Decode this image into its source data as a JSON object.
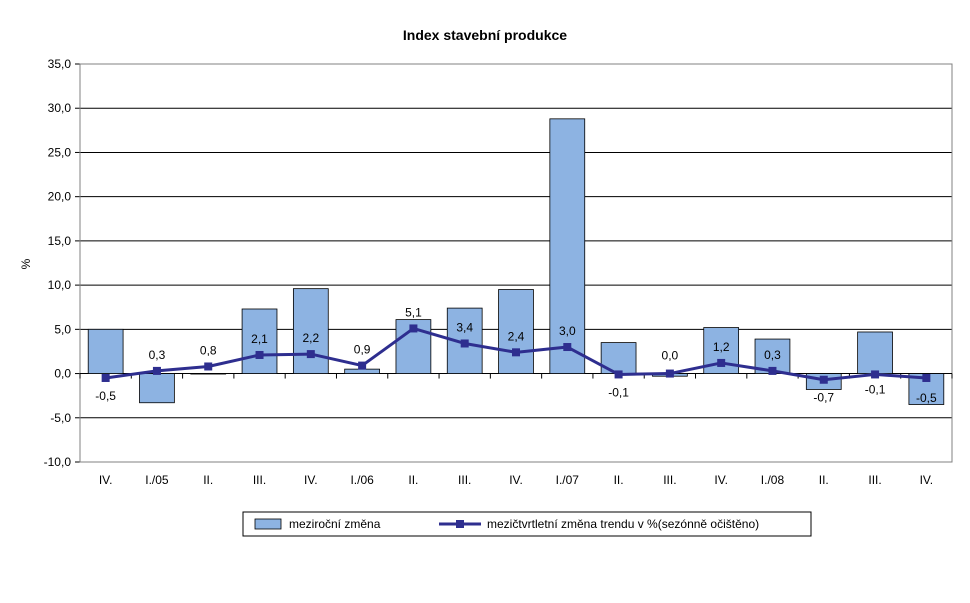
{
  "chart_data": {
    "type": "bar",
    "title": "Index stavební produkce",
    "xlabel": "",
    "ylabel": "%",
    "ylim": [
      -10,
      35
    ],
    "yticks": [
      "-10,0",
      "-5,0",
      "0,0",
      "5,0",
      "10,0",
      "15,0",
      "20,0",
      "25,0",
      "30,0",
      "35,0"
    ],
    "ytick_values": [
      -10,
      -5,
      0,
      5,
      10,
      15,
      20,
      25,
      30,
      35
    ],
    "grid": true,
    "legend_position": "bottom",
    "categories": [
      "IV.",
      "I./05",
      "II.",
      "III.",
      "IV.",
      "I./06",
      "II.",
      "III.",
      "IV.",
      "I./07",
      "II.",
      "III.",
      "IV.",
      "I./08",
      "II.",
      "III.",
      "IV."
    ],
    "series": [
      {
        "name": "meziroční změna",
        "kind": "bar",
        "color": "#8DB3E2",
        "values": [
          5.0,
          -3.3,
          0.0,
          7.3,
          9.6,
          0.5,
          6.1,
          7.4,
          9.5,
          28.8,
          3.5,
          -0.3,
          5.2,
          3.9,
          -1.8,
          4.7,
          -3.5
        ]
      },
      {
        "name": "mezičtvrtletní změna trendu v %(sezónně očištěno)",
        "kind": "line",
        "color": "#2E2E8F",
        "values": [
          -0.5,
          0.3,
          0.8,
          2.1,
          2.2,
          0.9,
          5.1,
          3.4,
          2.4,
          3.0,
          -0.1,
          0.0,
          1.2,
          0.3,
          -0.7,
          -0.1,
          -0.5
        ],
        "labels": [
          "-0,5",
          "0,3",
          "0,8",
          "2,1",
          "2,2",
          "0,9",
          "5,1",
          "3,4",
          "2,4",
          "3,0",
          "-0,1",
          "0,0",
          "1,2",
          "0,3",
          "-0,7",
          "-0,1",
          "-0,5"
        ]
      }
    ]
  }
}
